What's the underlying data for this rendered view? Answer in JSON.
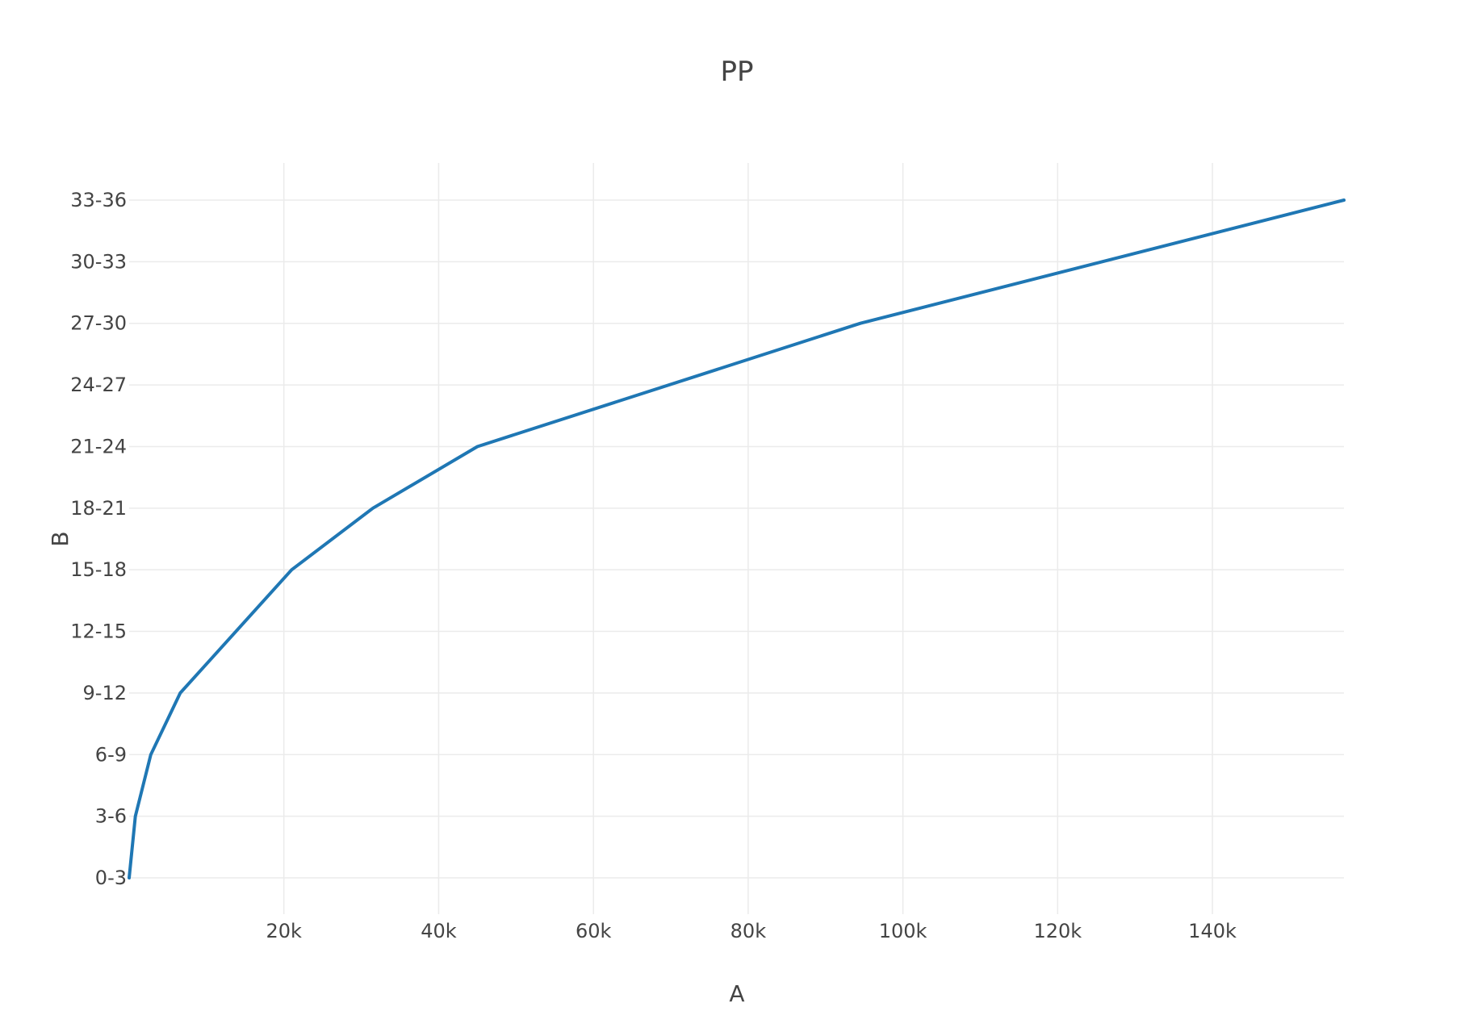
{
  "chart_data": {
    "type": "line",
    "title": "PP",
    "xlabel": "A",
    "ylabel": "B",
    "xlim": [
      0,
      157000
    ],
    "x_ticks": [
      20000,
      40000,
      60000,
      80000,
      100000,
      120000,
      140000
    ],
    "x_tick_labels": [
      "20k",
      "40k",
      "60k",
      "80k",
      "100k",
      "120k",
      "140k"
    ],
    "categories": [
      "0-3",
      "3-6",
      "6-9",
      "9-12",
      "12-15",
      "15-18",
      "18-21",
      "21-24",
      "24-27",
      "27-30",
      "30-33",
      "33-36"
    ],
    "series": [
      {
        "color": "#1f77b4",
        "x": [
          0,
          800,
          2800,
          6600,
          21000,
          31500,
          45000,
          94500,
          157000
        ],
        "y": [
          "0-3",
          "3-6",
          "6-9",
          "9-12",
          "15-18",
          "18-21",
          "21-24",
          "27-30",
          "33-36"
        ]
      }
    ],
    "grid": true,
    "legend": "none"
  }
}
